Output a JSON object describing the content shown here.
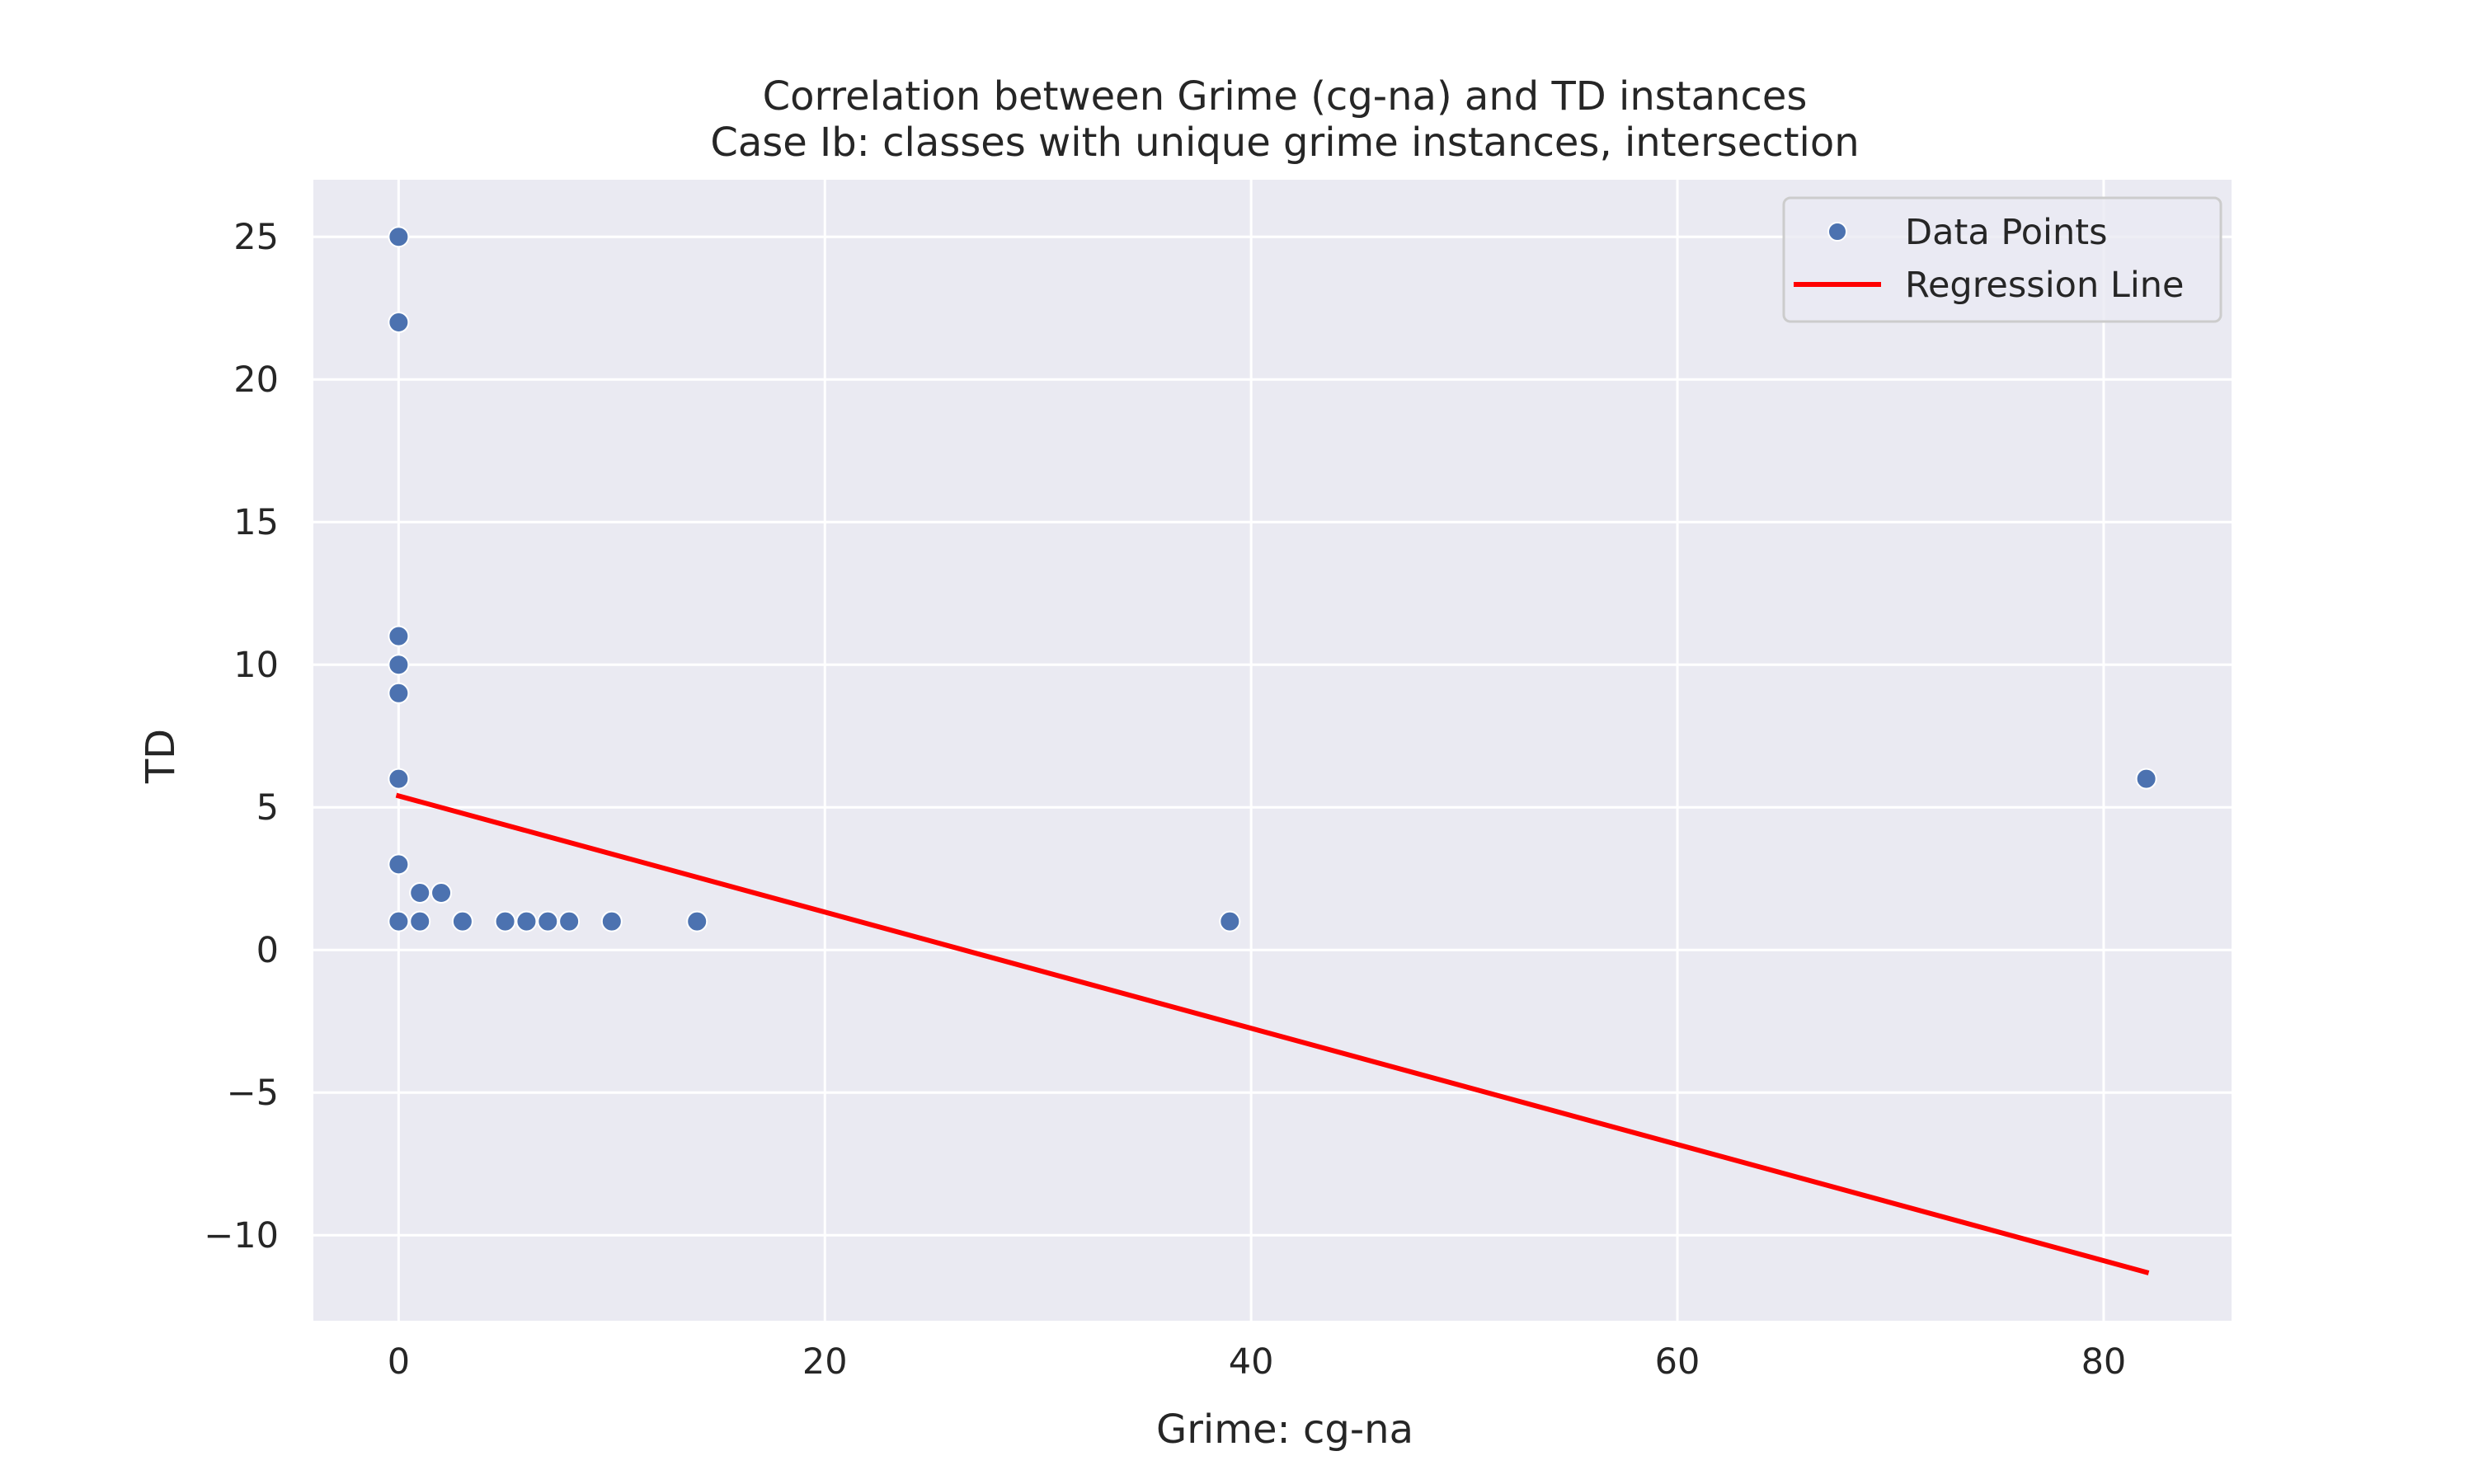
{
  "chart_data": {
    "type": "scatter",
    "title": "Correlation between Grime (cg-na) and TD instances",
    "subtitle": "Case Ib: classes with unique grime instances, intersection",
    "xlabel": "Grime: cg-na",
    "ylabel": "TD",
    "xlim": [
      -4,
      86
    ],
    "ylim": [
      -13,
      27
    ],
    "xticks": [
      0,
      20,
      40,
      60,
      80
    ],
    "yticks": [
      -10,
      -5,
      0,
      5,
      10,
      15,
      20,
      25
    ],
    "grid": true,
    "legend_position": "top-right",
    "series": [
      {
        "name": "Data Points",
        "kind": "scatter",
        "color": "#4c72b0",
        "points": [
          [
            0,
            25
          ],
          [
            0,
            22
          ],
          [
            0,
            11
          ],
          [
            0,
            10
          ],
          [
            0,
            9
          ],
          [
            0,
            6
          ],
          [
            0,
            3
          ],
          [
            0,
            1
          ],
          [
            1,
            2
          ],
          [
            1,
            1
          ],
          [
            2,
            2
          ],
          [
            3,
            1
          ],
          [
            5,
            1
          ],
          [
            6,
            1
          ],
          [
            7,
            1
          ],
          [
            8,
            1
          ],
          [
            10,
            1
          ],
          [
            14,
            1
          ],
          [
            39,
            1
          ],
          [
            82,
            6
          ]
        ]
      },
      {
        "name": "Regression Line",
        "kind": "line",
        "color": "#ff0000",
        "points": [
          [
            0,
            5.4
          ],
          [
            82,
            -11.3
          ]
        ]
      }
    ],
    "style": {
      "plot_background": "#eaeaf2",
      "grid_color": "#ffffff",
      "text_color": "#262626"
    }
  }
}
